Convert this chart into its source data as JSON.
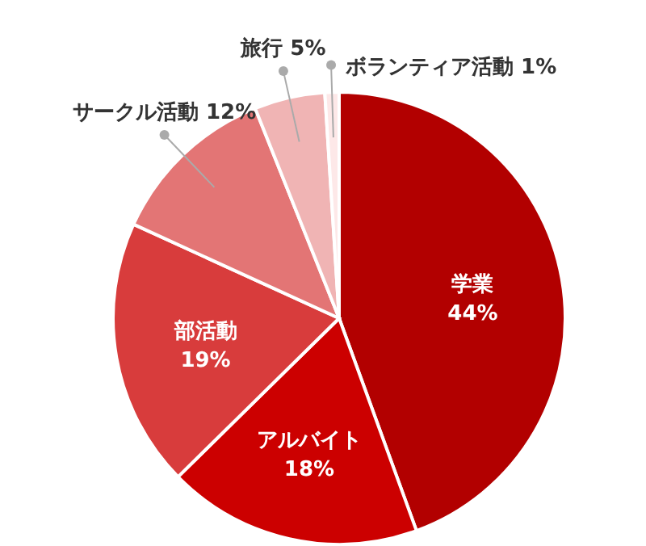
{
  "chart_data": {
    "type": "pie",
    "categories": [
      "学業",
      "アルバイト",
      "部活動",
      "サークル活動",
      "旅行",
      "ボランティア活動"
    ],
    "values": [
      44,
      18,
      19,
      12,
      5,
      1
    ],
    "colors": [
      "#b20000",
      "#cc0000",
      "#d83c3c",
      "#e37575",
      "#f0b4b4",
      "#fde8e8"
    ],
    "value_labels": [
      "44%",
      "18%",
      "19%",
      "12%",
      "5%",
      "1%"
    ]
  }
}
